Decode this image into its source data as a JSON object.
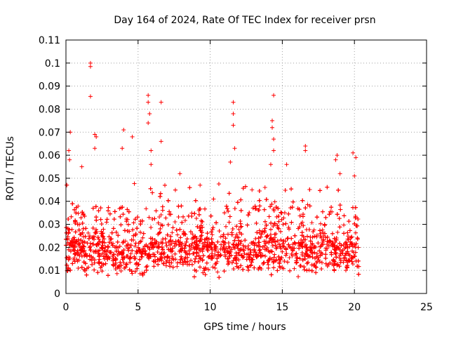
{
  "chart_data": {
    "type": "scatter",
    "title": "Day 164 of 2024, Rate Of TEC Index for receiver prsn",
    "xlabel": "GPS time / hours",
    "ylabel": "ROTI / TECUs",
    "xlim": [
      0,
      25
    ],
    "ylim": [
      0,
      0.11
    ],
    "x_ticks": [
      "0",
      "5",
      "10",
      "15",
      "20",
      "25"
    ],
    "y_ticks": [
      "0",
      "0.01",
      "0.02",
      "0.03",
      "0.04",
      "0.05",
      "0.06",
      "0.07",
      "0.08",
      "0.09",
      "0.1",
      "0.11"
    ],
    "grid": true,
    "marker": "+",
    "color": "#ff0000",
    "data_x_range": [
      0,
      20.3
    ],
    "outliers": [
      {
        "x": 0.3,
        "y": 0.07
      },
      {
        "x": 0.2,
        "y": 0.062
      },
      {
        "x": 0.25,
        "y": 0.058
      },
      {
        "x": 1.1,
        "y": 0.055
      },
      {
        "x": 1.7,
        "y": 0.1
      },
      {
        "x": 1.7,
        "y": 0.0985
      },
      {
        "x": 1.7,
        "y": 0.0855
      },
      {
        "x": 2.0,
        "y": 0.069
      },
      {
        "x": 2.0,
        "y": 0.063
      },
      {
        "x": 2.1,
        "y": 0.068
      },
      {
        "x": 4.0,
        "y": 0.071
      },
      {
        "x": 4.6,
        "y": 0.068
      },
      {
        "x": 3.9,
        "y": 0.063
      },
      {
        "x": 5.7,
        "y": 0.086
      },
      {
        "x": 5.7,
        "y": 0.083
      },
      {
        "x": 5.8,
        "y": 0.078
      },
      {
        "x": 5.7,
        "y": 0.074
      },
      {
        "x": 6.6,
        "y": 0.083
      },
      {
        "x": 6.6,
        "y": 0.066
      },
      {
        "x": 5.9,
        "y": 0.062
      },
      {
        "x": 5.9,
        "y": 0.056
      },
      {
        "x": 11.6,
        "y": 0.083
      },
      {
        "x": 11.6,
        "y": 0.078
      },
      {
        "x": 11.6,
        "y": 0.073
      },
      {
        "x": 11.7,
        "y": 0.063
      },
      {
        "x": 11.4,
        "y": 0.057
      },
      {
        "x": 14.4,
        "y": 0.086
      },
      {
        "x": 14.3,
        "y": 0.075
      },
      {
        "x": 14.3,
        "y": 0.072
      },
      {
        "x": 14.4,
        "y": 0.067
      },
      {
        "x": 14.4,
        "y": 0.062
      },
      {
        "x": 14.2,
        "y": 0.056
      },
      {
        "x": 16.6,
        "y": 0.064
      },
      {
        "x": 16.6,
        "y": 0.062
      },
      {
        "x": 18.8,
        "y": 0.06
      },
      {
        "x": 18.7,
        "y": 0.058
      },
      {
        "x": 19.9,
        "y": 0.061
      },
      {
        "x": 20.1,
        "y": 0.059
      },
      {
        "x": 19.0,
        "y": 0.052
      },
      {
        "x": 20.0,
        "y": 0.051
      },
      {
        "x": 15.3,
        "y": 0.056
      },
      {
        "x": 9.3,
        "y": 0.047
      },
      {
        "x": 7.9,
        "y": 0.052
      },
      {
        "x": 12.9,
        "y": 0.045
      },
      {
        "x": 13.8,
        "y": 0.046
      }
    ]
  }
}
